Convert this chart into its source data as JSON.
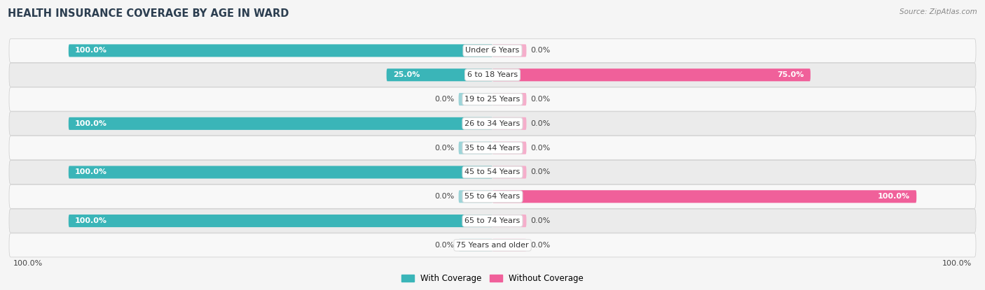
{
  "title": "Health Insurance Coverage by Age in Ward",
  "source": "Source: ZipAtlas.com",
  "categories": [
    "Under 6 Years",
    "6 to 18 Years",
    "19 to 25 Years",
    "26 to 34 Years",
    "35 to 44 Years",
    "45 to 54 Years",
    "55 to 64 Years",
    "65 to 74 Years",
    "75 Years and older"
  ],
  "with_coverage": [
    100.0,
    25.0,
    0.0,
    100.0,
    0.0,
    100.0,
    0.0,
    100.0,
    0.0
  ],
  "without_coverage": [
    0.0,
    75.0,
    0.0,
    0.0,
    0.0,
    0.0,
    100.0,
    0.0,
    0.0
  ],
  "color_with": "#3ab5b8",
  "color_without": "#f0609a",
  "color_with_light": "#9dd4d8",
  "color_without_light": "#f5aecb",
  "bg_color": "#f5f5f5",
  "row_bg_light": "#f8f8f8",
  "row_bg_dark": "#ebebeb",
  "bar_height": 0.52,
  "stub_size": 8.0,
  "max_val": 100.0,
  "left_label": "100.0%",
  "right_label": "100.0%",
  "title_color": "#2c3e50",
  "source_color": "#888888",
  "label_color_dark": "#444444",
  "xlim_left": -115,
  "xlim_right": 115
}
